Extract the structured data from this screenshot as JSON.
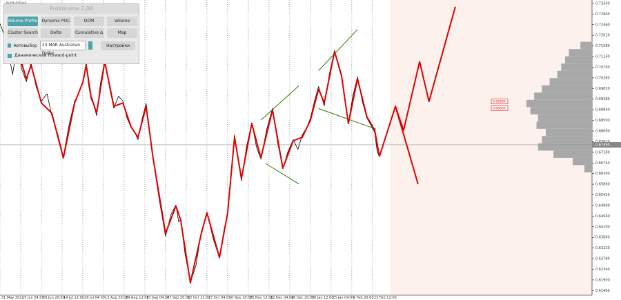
{
  "chart_data": {
    "type": "line",
    "title": "AUDUSD,H4",
    "xlim": [
      0,
      1888
    ],
    "ylim": [
      0.6127,
      0.7348
    ],
    "xticks": [
      {
        "value": 0,
        "label": "31 May 2022"
      },
      {
        "value": 66,
        "label": "15 Jun 04:00"
      },
      {
        "value": 132,
        "label": "29 Jun 20:00"
      },
      {
        "value": 198,
        "label": "14 Jul 12:00"
      },
      {
        "value": 264,
        "label": "29 Jul 04:00"
      },
      {
        "value": 330,
        "label": "12 Aug 20:00"
      },
      {
        "value": 396,
        "label": "29 Aug 12:00"
      },
      {
        "value": 462,
        "label": "13 Sep 04:00"
      },
      {
        "value": 528,
        "label": "27 Sep 20:00"
      },
      {
        "value": 594,
        "label": "12 Oct 12:00"
      },
      {
        "value": 660,
        "label": "27 Oct 04:00"
      },
      {
        "value": 726,
        "label": "10 Nov 20:00"
      },
      {
        "value": 792,
        "label": "25 Nov 12:00"
      },
      {
        "value": 858,
        "label": "12 Dec 04:00"
      },
      {
        "value": 924,
        "label": "26 Dec 20:00"
      },
      {
        "value": 990,
        "label": "10 Jan 12:00"
      },
      {
        "value": 1056,
        "label": "25 Jan 04:00"
      },
      {
        "value": 1122,
        "label": "9 Feb 20:00"
      },
      {
        "value": 1188,
        "label": "23 Feb 12:00"
      }
    ],
    "yticks": [
      {
        "value": 0.7334,
        "label": "0.73340"
      },
      {
        "value": 0.729,
        "label": "0.72900"
      },
      {
        "value": 0.7246,
        "label": "0.72460"
      },
      {
        "value": 0.7202,
        "label": "0.72020"
      },
      {
        "value": 0.7158,
        "label": "0.71580"
      },
      {
        "value": 0.7114,
        "label": "0.71140"
      },
      {
        "value": 0.707,
        "label": "0.70700"
      },
      {
        "value": 0.7026,
        "label": "0.70260"
      },
      {
        "value": 0.6982,
        "label": "0.69820"
      },
      {
        "value": 0.6938,
        "label": "0.69380"
      },
      {
        "value": 0.6894,
        "label": "0.68940"
      },
      {
        "value": 0.685,
        "label": "0.68500"
      },
      {
        "value": 0.6806,
        "label": "0.68060"
      },
      {
        "value": 0.6762,
        "label": "0.67620"
      },
      {
        "value": 0.6718,
        "label": "0.67180"
      },
      {
        "value": 0.6674,
        "label": "0.66740"
      },
      {
        "value": 0.663,
        "label": "0.66300"
      },
      {
        "value": 0.6586,
        "label": "0.65860"
      },
      {
        "value": 0.6542,
        "label": "0.65420"
      },
      {
        "value": 0.6498,
        "label": "0.64980"
      },
      {
        "value": 0.6454,
        "label": "0.64540"
      },
      {
        "value": 0.641,
        "label": "0.64100"
      },
      {
        "value": 0.6366,
        "label": "0.63660"
      },
      {
        "value": 0.6322,
        "label": "0.63220"
      },
      {
        "value": 0.6278,
        "label": "0.62780"
      },
      {
        "value": 0.6234,
        "label": "0.62340"
      },
      {
        "value": 0.619,
        "label": "0.61900"
      },
      {
        "value": 0.6146,
        "label": "0.61460"
      }
    ],
    "forecast_zone_start": 1243,
    "current_price": {
      "value": 0.6749,
      "label": "0.67490"
    },
    "level_labels": [
      {
        "value": 0.6928,
        "label": "0.69280"
      },
      {
        "value": 0.69,
        "label": "0.69000"
      }
    ],
    "series": [
      {
        "name": "price",
        "color": "#000000",
        "width": 0.8,
        "x": [
          0,
          20,
          40,
          55,
          70,
          84,
          92,
          99,
          115,
          132,
          150,
          165,
          185,
          202,
          220,
          238,
          250,
          264,
          275,
          282,
          290,
          300,
          308,
          320,
          334,
          350,
          363,
          378,
          392,
          405,
          418,
          430,
          440,
          452,
          466,
          478,
          488,
          508,
          528,
          545,
          561,
          570,
          576,
          590,
          607,
          625,
          642,
          652,
          660,
          680,
          700,
          712,
          726,
          738,
          748,
          760,
          770,
          786,
          803,
          818,
          832,
          850,
          869,
          885,
          902,
          918,
          935,
          950,
          964,
          978,
          990,
          1003,
          1016,
          1025,
          1034,
          1050,
          1067,
          1078,
          1089,
          1100,
          1111,
          1125,
          1140,
          1155,
          1170,
          1183,
          1195,
          1203,
          1210,
          1220
        ],
        "values": [
          0.725,
          0.718,
          0.704,
          0.716,
          0.706,
          0.701,
          0.705,
          0.709,
          0.699,
          0.693,
          0.696,
          0.687,
          0.679,
          0.67,
          0.683,
          0.693,
          0.696,
          0.701,
          0.709,
          0.7,
          0.694,
          0.691,
          0.687,
          0.7,
          0.71,
          0.698,
          0.69,
          0.695,
          0.693,
          0.686,
          0.682,
          0.68,
          0.677,
          0.685,
          0.692,
          0.68,
          0.669,
          0.652,
          0.637,
          0.646,
          0.65,
          0.643,
          0.644,
          0.63,
          0.618,
          0.625,
          0.639,
          0.643,
          0.647,
          0.636,
          0.628,
          0.638,
          0.647,
          0.665,
          0.679,
          0.668,
          0.66,
          0.674,
          0.684,
          0.674,
          0.669,
          0.681,
          0.69,
          0.676,
          0.665,
          0.672,
          0.677,
          0.673,
          0.679,
          0.682,
          0.686,
          0.693,
          0.699,
          0.695,
          0.691,
          0.704,
          0.714,
          0.708,
          0.703,
          0.693,
          0.684,
          0.695,
          0.703,
          0.693,
          0.686,
          0.683,
          0.68,
          0.672,
          0.67,
          0.674
        ]
      },
      {
        "name": "zigzag",
        "color": "#e00000",
        "width": 2,
        "x": [
          55,
          84,
          99,
          132,
          165,
          202,
          238,
          264,
          275,
          290,
          308,
          334,
          363,
          392,
          418,
          440,
          466,
          488,
          528,
          561,
          576,
          607,
          642,
          660,
          700,
          726,
          748,
          770,
          803,
          832,
          869,
          902,
          935,
          964,
          990,
          1016,
          1034,
          1067,
          1089,
          1111,
          1140,
          1170,
          1195,
          1210
        ],
        "values": [
          0.7149,
          0.7022,
          0.7078,
          0.6922,
          0.688,
          0.6695,
          0.6922,
          0.7007,
          0.7078,
          0.6951,
          0.688,
          0.7093,
          0.6908,
          0.6922,
          0.6823,
          0.678,
          0.6908,
          0.6695,
          0.6383,
          0.6496,
          0.6439,
          0.6178,
          0.6383,
          0.6468,
          0.6283,
          0.6468,
          0.678,
          0.661,
          0.6837,
          0.6695,
          0.6894,
          0.6652,
          0.6766,
          0.678,
          0.6851,
          0.6979,
          0.6922,
          0.7135,
          0.7036,
          0.6837,
          0.7022,
          0.6865,
          0.6809,
          0.6701
        ]
      },
      {
        "name": "forecast",
        "color": "#e00000",
        "width": 2,
        "x": [
          1210,
          1261,
          1287,
          1338,
          1368,
          1452
        ],
        "values": [
          0.6701,
          0.6908,
          0.6809,
          0.7093,
          0.6928,
          0.732
        ]
      },
      {
        "name": "forecast-alt",
        "color": "#e00000",
        "width": 2,
        "x": [
          1261,
          1333
        ],
        "values": [
          0.6908,
          0.6587
        ]
      },
      {
        "name": "channel-1-top",
        "color": "#2a7a00",
        "width": 1,
        "x": [
          832,
          953
        ],
        "values": [
          0.6851,
          0.6993
        ]
      },
      {
        "name": "channel-1-bottom",
        "color": "#2a7a00",
        "width": 1,
        "x": [
          847,
          953
        ],
        "values": [
          0.6672,
          0.6587
        ]
      },
      {
        "name": "channel-2-top",
        "color": "#2a7a00",
        "width": 1,
        "x": [
          1016,
          1140
        ],
        "values": [
          0.7056,
          0.7226
        ]
      },
      {
        "name": "channel-2-bottom",
        "color": "#2a7a00",
        "width": 1,
        "x": [
          1016,
          1199
        ],
        "values": [
          0.6899,
          0.6814
        ]
      }
    ],
    "profile": {
      "color": "#a8a8a8",
      "levels": [
        0.716,
        0.713,
        0.71,
        0.707,
        0.704,
        0.701,
        0.698,
        0.695,
        0.692,
        0.689,
        0.686,
        0.683,
        0.68,
        0.677,
        0.674,
        0.671,
        0.668,
        0.665
      ],
      "volumes": [
        15,
        30,
        35,
        40,
        45,
        55,
        65,
        75,
        85,
        80,
        70,
        72,
        60,
        65,
        70,
        50,
        25,
        10
      ]
    }
  },
  "panel": {
    "title": "ProVolume 2.06",
    "buttons": [
      "Volume Profile",
      "Dynamic POC",
      "DOM",
      "Volume",
      "Cluster Search",
      "Delta",
      "Cumulative Δ",
      "Map"
    ],
    "auto_select": "Автовыбор",
    "instrument": "23 MAR Australian Dollar",
    "settings": "Настройки",
    "forward_point": "Динамический Forward-point"
  }
}
